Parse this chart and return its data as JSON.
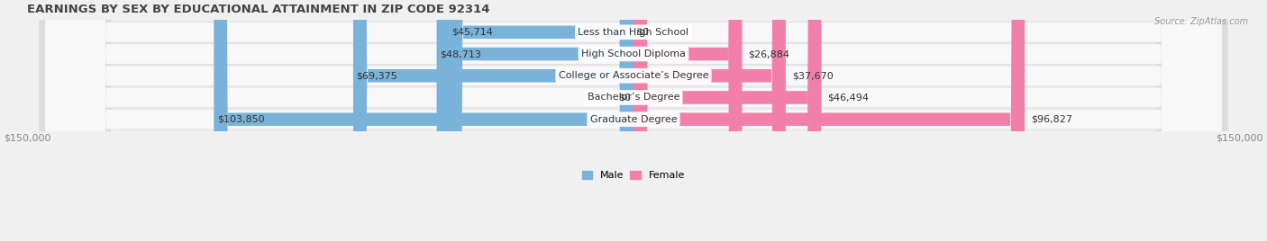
{
  "title": "EARNINGS BY SEX BY EDUCATIONAL ATTAINMENT IN ZIP CODE 92314",
  "source": "Source: ZipAtlas.com",
  "categories": [
    "Less than High School",
    "High School Diploma",
    "College or Associate’s Degree",
    "Bachelor’s Degree",
    "Graduate Degree"
  ],
  "male_values": [
    45714,
    48713,
    69375,
    0,
    103850
  ],
  "female_values": [
    0,
    26884,
    37670,
    46494,
    96827
  ],
  "male_color": "#7ab3d9",
  "female_color": "#f27faa",
  "male_label_color": "#ffffff",
  "female_label_color": "#ffffff",
  "bar_height": 0.58,
  "xlim": 150000,
  "background_color": "#f0f0f0",
  "row_bg_color": "#e8e8e8",
  "row_inner_color": "#fafafa",
  "title_fontsize": 9.5,
  "label_fontsize": 8,
  "tick_fontsize": 8,
  "cat_fontsize": 8
}
